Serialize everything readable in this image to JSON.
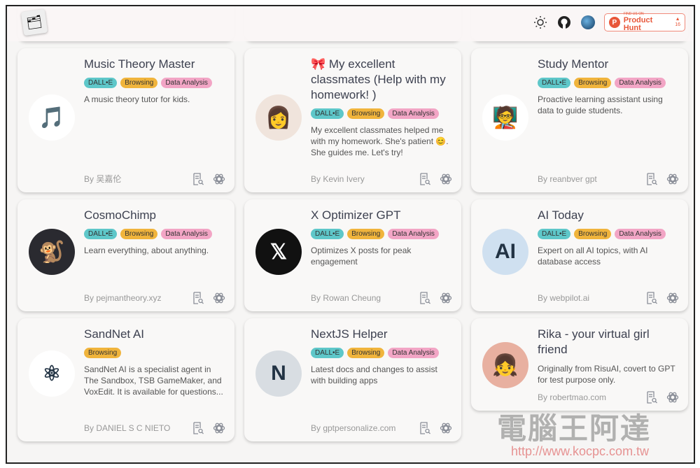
{
  "header": {
    "product_hunt": {
      "small": "FIND US ON",
      "label": "Product Hunt",
      "votes": "16"
    },
    "icons": [
      "sun-icon",
      "github-icon",
      "globe-icon"
    ]
  },
  "cards": [
    {
      "title": "Music Theory Master",
      "tags": [
        "DALL•E",
        "Browsing",
        "Data Analysis"
      ],
      "desc": "A music theory tutor for kids.",
      "by": "By 吴嘉伦",
      "avatar": "🎵",
      "avbg": "#fff"
    },
    {
      "title": "🎀 My excellent classmates (Help with my homework! )",
      "tags": [
        "DALL•E",
        "Browsing",
        "Data Analysis"
      ],
      "desc": "My excellent classmates helped me with my homework. She's patient 😊. She guides me. Let's try!",
      "by": "By Kevin Ivery",
      "avatar": "👩",
      "avbg": "#f0e4dc"
    },
    {
      "title": "Study Mentor",
      "tags": [
        "DALL•E",
        "Browsing",
        "Data Analysis"
      ],
      "desc": "Proactive learning assistant using data to guide students.",
      "by": "By reanbver gpt",
      "avatar": "🧑‍🏫",
      "avbg": "#fff"
    },
    {
      "title": "CosmoChimp",
      "tags": [
        "DALL•E",
        "Browsing",
        "Data Analysis"
      ],
      "desc": "Learn everything, about anything.",
      "by": "By pejmantheory.xyz",
      "avatar": "🐒",
      "avbg": "#2a2a30"
    },
    {
      "title": "X Optimizer GPT",
      "tags": [
        "DALL•E",
        "Browsing",
        "Data Analysis"
      ],
      "desc": "Optimizes X posts for peak engagement",
      "by": "By Rowan Cheung",
      "avatar": "𝕏",
      "avbg": "#111"
    },
    {
      "title": "AI Today",
      "tags": [
        "DALL•E",
        "Browsing",
        "Data Analysis"
      ],
      "desc": "Expert on all AI topics, with AI database access",
      "by": "By webpilot.ai",
      "avatar": "AI",
      "avbg": "#cfe0f0"
    },
    {
      "title": "SandNet AI",
      "tags": [
        "Browsing"
      ],
      "desc": "SandNet AI is a specialist agent in The Sandbox, TSB GameMaker, and VoxEdit. It is available for questions...",
      "by": "By DANIEL S C NIETO",
      "avatar": "⚛",
      "avbg": "#fff"
    },
    {
      "title": "NextJS Helper",
      "tags": [
        "DALL•E",
        "Browsing",
        "Data Analysis"
      ],
      "desc": "Latest docs and changes to assist with building apps",
      "by": "By gptpersonalize.com",
      "avatar": "N",
      "avbg": "#d8dde2"
    },
    {
      "title": "Rika - your virtual girl friend",
      "tags": [],
      "desc": "Originally from RisuAI, covert to GPT for test purpose only.",
      "by": "By robertmao.com",
      "avatar": "👧",
      "avbg": "#e8b0a0"
    }
  ],
  "watermark": {
    "text": "電腦王阿達",
    "url": "http://www.kocpc.com.tw"
  }
}
